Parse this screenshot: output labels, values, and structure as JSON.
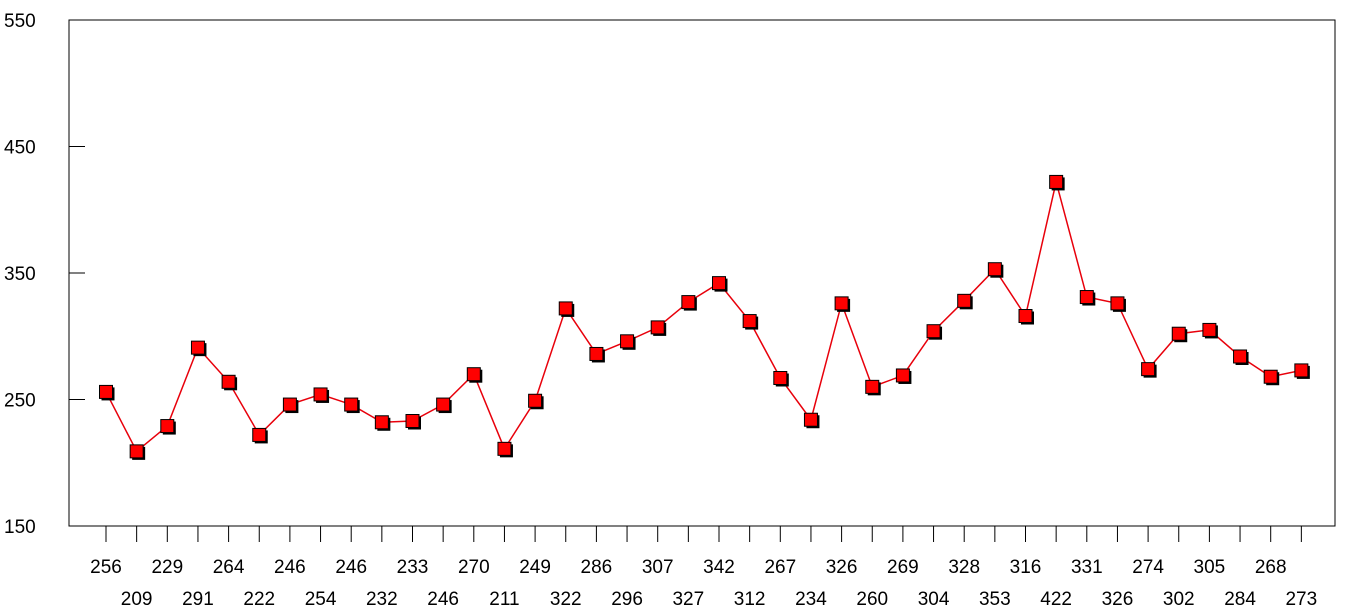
{
  "chart_data": {
    "type": "line",
    "title": "",
    "xlabel": "",
    "ylabel": "",
    "ylim": [
      150,
      550
    ],
    "y_ticks": [
      150,
      250,
      350,
      450,
      550
    ],
    "grid": false,
    "legend": "none",
    "categories": [
      "256",
      "209",
      "229",
      "291",
      "264",
      "222",
      "246",
      "254",
      "246",
      "232",
      "233",
      "246",
      "270",
      "211",
      "249",
      "322",
      "286",
      "296",
      "307",
      "327",
      "342",
      "312",
      "267",
      "234",
      "326",
      "260",
      "269",
      "304",
      "328",
      "353",
      "316",
      "422",
      "331",
      "326",
      "274",
      "302",
      "305",
      "284",
      "268",
      "273"
    ],
    "series": [
      {
        "values": [
          256,
          209,
          229,
          291,
          264,
          222,
          246,
          254,
          246,
          232,
          233,
          246,
          270,
          211,
          249,
          322,
          286,
          296,
          307,
          327,
          342,
          312,
          267,
          234,
          326,
          260,
          269,
          304,
          328,
          353,
          316,
          422,
          331,
          326,
          274,
          302,
          305,
          284,
          268,
          273
        ],
        "line_color": "#e8000b",
        "marker_color": "#ff0000",
        "marker": "square"
      }
    ]
  }
}
